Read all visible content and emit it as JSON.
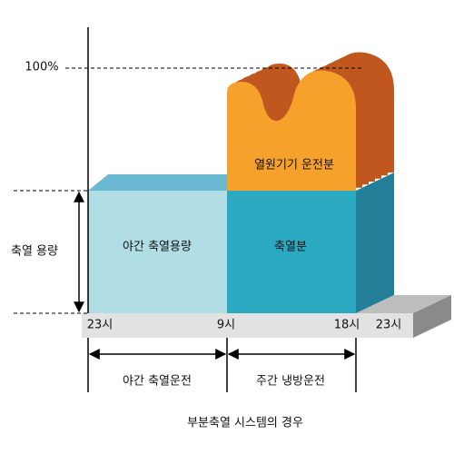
{
  "labels": {
    "capacity_percent": "100%",
    "storage_capacity": "축열 용량",
    "night_storage_capacity": "야간 축열용량",
    "stored_portion": "축열분",
    "equipment_portion": "열원기기 운전분"
  },
  "timeline": {
    "ticks": [
      "23시",
      "9시",
      "18시",
      "23시"
    ],
    "periods": [
      "야간 축열운전",
      "주간 냉방운전"
    ]
  },
  "caption": "부분축열 시스템의 경우"
}
